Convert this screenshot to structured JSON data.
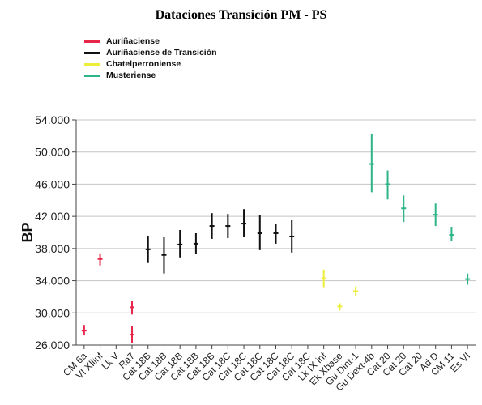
{
  "chart_data": {
    "type": "scatter",
    "title": "Dataciones Transición PM - PS",
    "ylabel": "BP",
    "xlabel": "",
    "ylim": [
      26000,
      54000
    ],
    "yticks": [
      "26.000",
      "30.000",
      "34.000",
      "38.000",
      "42.000",
      "46.000",
      "50.000",
      "54.000"
    ],
    "ytick_values": [
      26000,
      30000,
      34000,
      38000,
      42000,
      46000,
      50000,
      54000
    ],
    "categories": [
      "CM 6a",
      "VI Xllinf",
      "Lk V",
      "Ra7",
      "Cat 18B",
      "Cat 18B",
      "Cat 18B",
      "Cat 18B",
      "Cat 18B",
      "Cat 18C",
      "Cat 18C",
      "Cat 18C",
      "Cat 18C",
      "Cat 18C",
      "Cat 18C",
      "Lk IX inf",
      "Ek Xbase",
      "Gu Dint-1",
      "Gu Dext-4b",
      "Cat 20",
      "Cat 20",
      "Cat 20",
      "Ad D",
      "CM 11",
      "Es VI"
    ],
    "legend": [
      {
        "name": "Auriñaciense",
        "color": "#e8264a"
      },
      {
        "name": "Auriñaciense de Transición",
        "color": "#111111"
      },
      {
        "name": "Chatelperroniense",
        "color": "#eded3c"
      },
      {
        "name": "Musteriense",
        "color": "#2eb585"
      }
    ],
    "series": [
      {
        "name": "Auriñaciense",
        "color": "#e8264a",
        "points": [
          {
            "x": "CM 6a",
            "y": 27800,
            "low": 27200,
            "high": 28500
          },
          {
            "x": "VI Xllinf",
            "y": 36700,
            "low": 35900,
            "high": 37400
          },
          {
            "x": "Ra7",
            "y": 30700,
            "low": 29800,
            "high": 31500
          },
          {
            "x": "Ra7",
            "y": 27300,
            "low": 26200,
            "high": 28400
          }
        ]
      },
      {
        "name": "Auriñaciense de Transición",
        "color": "#111111",
        "points": [
          {
            "x": "Cat 18B",
            "y": 37900,
            "low": 36200,
            "high": 39600
          },
          {
            "x": "Cat 18B",
            "y": 37200,
            "low": 34900,
            "high": 39400
          },
          {
            "x": "Cat 18B",
            "y": 38500,
            "low": 36900,
            "high": 40300
          },
          {
            "x": "Cat 18B",
            "y": 38600,
            "low": 37300,
            "high": 39900
          },
          {
            "x": "Cat 18B",
            "y": 40800,
            "low": 39200,
            "high": 42400
          },
          {
            "x": "Cat 18C",
            "y": 40800,
            "low": 39300,
            "high": 42300
          },
          {
            "x": "Cat 18C",
            "y": 41100,
            "low": 39400,
            "high": 42900
          },
          {
            "x": "Cat 18C",
            "y": 39900,
            "low": 37800,
            "high": 42200
          },
          {
            "x": "Cat 18C",
            "y": 39900,
            "low": 38600,
            "high": 41100
          },
          {
            "x": "Cat 18C",
            "y": 39500,
            "low": 37500,
            "high": 41600
          }
        ]
      },
      {
        "name": "Chatelperroniense",
        "color": "#eded3c",
        "points": [
          {
            "x": "Lk IX inf",
            "y": 34300,
            "low": 33200,
            "high": 35400
          },
          {
            "x": "Ek Xbase",
            "y": 30800,
            "low": 30300,
            "high": 31200
          },
          {
            "x": "Gu Dint-1",
            "y": 32700,
            "low": 32100,
            "high": 33300
          }
        ]
      },
      {
        "name": "Musteriense",
        "color": "#2eb585",
        "points": [
          {
            "x": "Gu Dext-4b",
            "y": 48500,
            "low": 45000,
            "high": 52300
          },
          {
            "x": "Cat 20",
            "y": 46000,
            "low": 44100,
            "high": 47700
          },
          {
            "x": "Cat 20",
            "y": 43000,
            "low": 41300,
            "high": 44600
          },
          {
            "x": "Ad D",
            "y": 42200,
            "low": 40800,
            "high": 43600
          },
          {
            "x": "CM 11",
            "y": 39700,
            "low": 38900,
            "high": 40700
          },
          {
            "x": "Es VI",
            "y": 34200,
            "low": 33500,
            "high": 34900
          }
        ]
      }
    ]
  }
}
